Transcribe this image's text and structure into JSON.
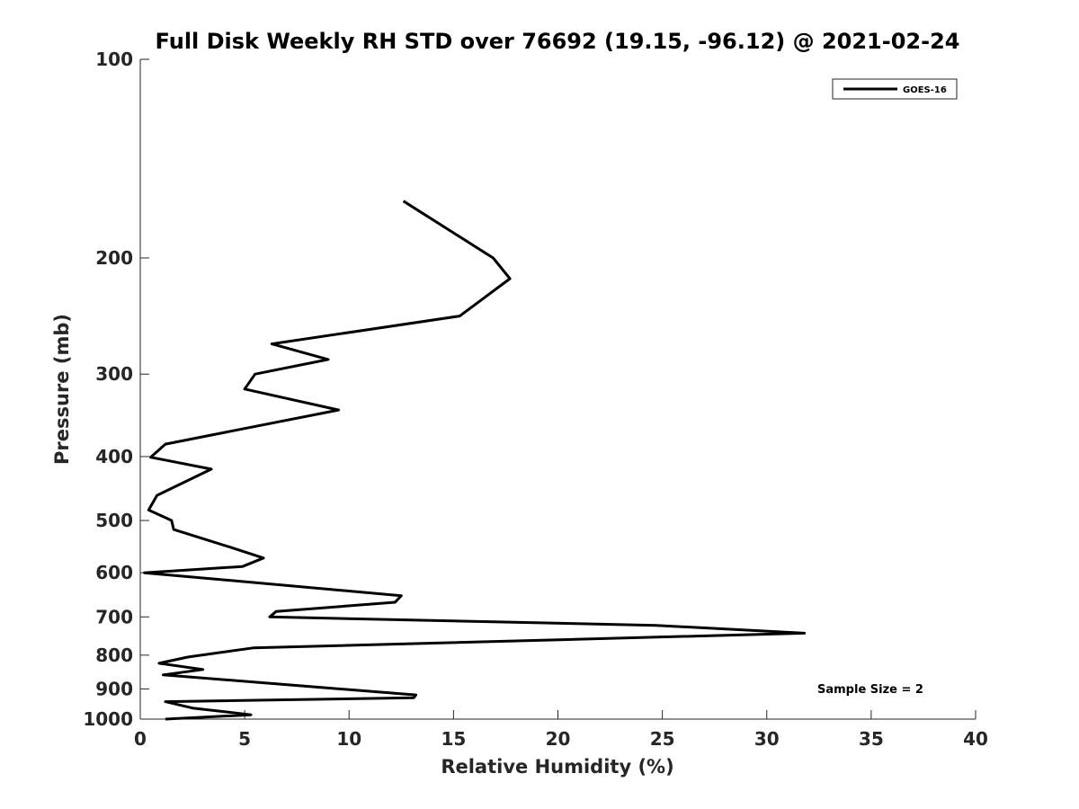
{
  "chart_data": {
    "type": "line",
    "title": "Full Disk Weekly RH STD over 76692 (19.15, -96.12) @ 2021-02-24",
    "xlabel": "Relative Humidity (%)",
    "ylabel": "Pressure (mb)",
    "xlim": [
      0,
      40
    ],
    "ylim": [
      100,
      1000
    ],
    "y_scale": "log",
    "y_inverted": true,
    "x_ticks": [
      "0",
      "5",
      "10",
      "15",
      "20",
      "25",
      "30",
      "35",
      "40"
    ],
    "y_ticks": [
      "100",
      "200",
      "300",
      "400",
      "500",
      "600",
      "700",
      "800",
      "900",
      "1000"
    ],
    "grid": false,
    "legend_position": "top-right",
    "annotation": "Sample Size = 2",
    "series": [
      {
        "name": "GOES-16",
        "color": "#000000",
        "points": [
          {
            "x": 12.6,
            "y": 164
          },
          {
            "x": 16.9,
            "y": 200
          },
          {
            "x": 17.7,
            "y": 215
          },
          {
            "x": 15.3,
            "y": 245
          },
          {
            "x": 6.3,
            "y": 270
          },
          {
            "x": 9.0,
            "y": 285
          },
          {
            "x": 5.5,
            "y": 300
          },
          {
            "x": 5.0,
            "y": 316
          },
          {
            "x": 9.5,
            "y": 340
          },
          {
            "x": 1.2,
            "y": 383
          },
          {
            "x": 0.5,
            "y": 401
          },
          {
            "x": 3.4,
            "y": 418
          },
          {
            "x": 0.8,
            "y": 458
          },
          {
            "x": 0.4,
            "y": 482
          },
          {
            "x": 1.5,
            "y": 500
          },
          {
            "x": 1.6,
            "y": 516
          },
          {
            "x": 4.4,
            "y": 550
          },
          {
            "x": 5.9,
            "y": 570
          },
          {
            "x": 4.9,
            "y": 587
          },
          {
            "x": 0.2,
            "y": 600
          },
          {
            "x": 12.5,
            "y": 650
          },
          {
            "x": 12.2,
            "y": 665
          },
          {
            "x": 6.5,
            "y": 687
          },
          {
            "x": 6.2,
            "y": 700
          },
          {
            "x": 24.7,
            "y": 721
          },
          {
            "x": 31.8,
            "y": 741
          },
          {
            "x": 5.4,
            "y": 780
          },
          {
            "x": 2.3,
            "y": 805
          },
          {
            "x": 0.9,
            "y": 823
          },
          {
            "x": 3.0,
            "y": 841
          },
          {
            "x": 1.1,
            "y": 857
          },
          {
            "x": 13.2,
            "y": 919
          },
          {
            "x": 13.1,
            "y": 928
          },
          {
            "x": 1.2,
            "y": 941
          },
          {
            "x": 2.5,
            "y": 962
          },
          {
            "x": 5.3,
            "y": 985
          },
          {
            "x": 1.2,
            "y": 1000
          }
        ]
      }
    ]
  }
}
